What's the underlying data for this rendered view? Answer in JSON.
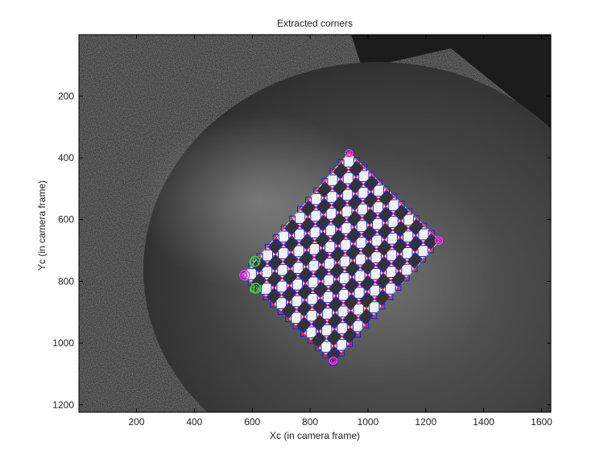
{
  "chart_data": {
    "type": "scatter",
    "title": "Extracted corners",
    "xlabel": "Xc (in camera frame)",
    "ylabel": "Yc (in camera frame)",
    "xlim": [
      1,
      1632
    ],
    "ylim": [
      1224,
      1
    ],
    "y_reversed": true,
    "xticks": [
      200,
      400,
      600,
      800,
      1000,
      1200,
      1400,
      1600
    ],
    "yticks": [
      200,
      400,
      600,
      800,
      1000,
      1200
    ],
    "background": "grayscale photograph of a round dark table on carpet with a tilted checkerboard",
    "grid": false,
    "colors": {
      "corner_box": "#1a1aff",
      "corner_cross": "#e03030",
      "marker": "#ff33ff",
      "axis_label_marker": "#33dd33"
    },
    "board": {
      "corner_top": [
        935,
        385
      ],
      "corner_right": [
        1245,
        668
      ],
      "corner_bottom": [
        880,
        1057
      ],
      "corner_left": [
        570,
        780
      ],
      "cols": 12,
      "rows": 13
    },
    "origin_marker": {
      "label": "O",
      "x": 574,
      "y": 780
    },
    "axis_markers": [
      {
        "label": "dY",
        "x": 610,
        "y": 735
      },
      {
        "label": "dX",
        "x": 612,
        "y": 822
      }
    ],
    "labeled_corners": [
      {
        "label": "O",
        "x": 935,
        "y": 385
      },
      {
        "label": "O",
        "x": 1245,
        "y": 668
      },
      {
        "label": "O",
        "x": 880,
        "y": 1057
      }
    ]
  }
}
